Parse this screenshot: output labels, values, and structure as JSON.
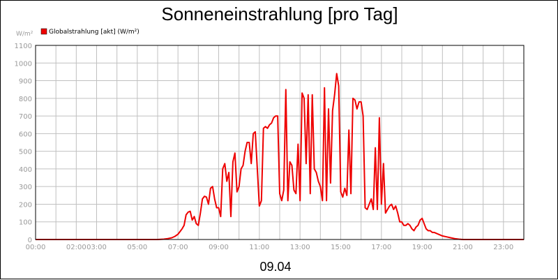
{
  "chart_data": {
    "type": "line",
    "title": "Sonneneinstrahlung [pro Tag]",
    "ylabel": "W/m²",
    "xlabel": "09.04",
    "ylim": [
      0,
      1100
    ],
    "y_ticks": [
      "0",
      "100",
      "200",
      "300",
      "400",
      "500",
      "600",
      "700",
      "800",
      "900",
      "1000",
      "1100"
    ],
    "x_ticks": [
      {
        "t": 0,
        "label": "00:00"
      },
      {
        "t": 2,
        "label": "02:00"
      },
      {
        "t": 3,
        "label": "03:00"
      },
      {
        "t": 5,
        "label": "05:00"
      },
      {
        "t": 7,
        "label": "07:00"
      },
      {
        "t": 9,
        "label": "09:00"
      },
      {
        "t": 11,
        "label": "11:00"
      },
      {
        "t": 13,
        "label": "13:00"
      },
      {
        "t": 15,
        "label": "15:00"
      },
      {
        "t": 17,
        "label": "17:00"
      },
      {
        "t": 19,
        "label": "19:00"
      },
      {
        "t": 21,
        "label": "21:00"
      },
      {
        "t": 23,
        "label": "23:00"
      }
    ],
    "x_grid_step_hours": 1,
    "x_range_hours": [
      0,
      24
    ],
    "grid": true,
    "legend_position": "top-left",
    "series": [
      {
        "name": "Globalstrahlung [akt] (W/m²)",
        "color": "#ee0000",
        "x": [
          0,
          6.0,
          6.3,
          6.5,
          6.7,
          6.85,
          7.0,
          7.1,
          7.2,
          7.3,
          7.4,
          7.5,
          7.6,
          7.7,
          7.8,
          7.9,
          8.0,
          8.1,
          8.2,
          8.3,
          8.4,
          8.5,
          8.6,
          8.7,
          8.8,
          8.9,
          9.0,
          9.1,
          9.2,
          9.3,
          9.4,
          9.5,
          9.6,
          9.7,
          9.8,
          9.9,
          10.0,
          10.1,
          10.2,
          10.3,
          10.4,
          10.5,
          10.6,
          10.7,
          10.8,
          10.9,
          11.0,
          11.1,
          11.2,
          11.3,
          11.4,
          11.5,
          11.6,
          11.7,
          11.8,
          11.9,
          12.0,
          12.1,
          12.2,
          12.3,
          12.4,
          12.5,
          12.6,
          12.7,
          12.8,
          12.9,
          13.0,
          13.1,
          13.2,
          13.3,
          13.4,
          13.5,
          13.6,
          13.7,
          13.8,
          13.9,
          14.0,
          14.1,
          14.2,
          14.3,
          14.4,
          14.5,
          14.6,
          14.7,
          14.8,
          14.9,
          15.0,
          15.1,
          15.2,
          15.3,
          15.4,
          15.5,
          15.6,
          15.7,
          15.8,
          15.9,
          16.0,
          16.1,
          16.2,
          16.3,
          16.4,
          16.5,
          16.6,
          16.7,
          16.8,
          16.9,
          17.0,
          17.1,
          17.2,
          17.3,
          17.4,
          17.5,
          17.6,
          17.7,
          17.8,
          17.9,
          18.0,
          18.1,
          18.2,
          18.3,
          18.4,
          18.5,
          18.6,
          18.7,
          18.8,
          18.9,
          19.0,
          19.1,
          19.2,
          19.3,
          19.4,
          19.5,
          19.6,
          19.7,
          19.8,
          19.9,
          20.0,
          20.2,
          20.4,
          20.6,
          20.8,
          21.0,
          24
        ],
        "values": [
          0,
          0,
          2,
          5,
          10,
          18,
          30,
          45,
          60,
          80,
          140,
          155,
          160,
          110,
          130,
          90,
          80,
          150,
          230,
          245,
          240,
          200,
          290,
          300,
          230,
          180,
          180,
          130,
          400,
          430,
          330,
          380,
          130,
          440,
          490,
          270,
          300,
          400,
          420,
          500,
          550,
          550,
          430,
          600,
          610,
          400,
          190,
          220,
          630,
          640,
          630,
          650,
          660,
          690,
          700,
          700,
          260,
          220,
          280,
          850,
          220,
          440,
          420,
          280,
          260,
          540,
          220,
          830,
          800,
          430,
          820,
          260,
          820,
          400,
          380,
          330,
          300,
          220,
          860,
          220,
          740,
          320,
          730,
          820,
          940,
          870,
          270,
          240,
          290,
          250,
          620,
          260,
          800,
          790,
          740,
          780,
          780,
          700,
          180,
          170,
          200,
          230,
          170,
          520,
          170,
          690,
          200,
          430,
          150,
          170,
          190,
          200,
          170,
          190,
          150,
          100,
          100,
          80,
          80,
          90,
          80,
          60,
          50,
          70,
          80,
          110,
          120,
          90,
          60,
          50,
          50,
          40,
          40,
          35,
          30,
          25,
          20,
          15,
          10,
          5,
          2,
          0,
          0
        ]
      }
    ]
  }
}
